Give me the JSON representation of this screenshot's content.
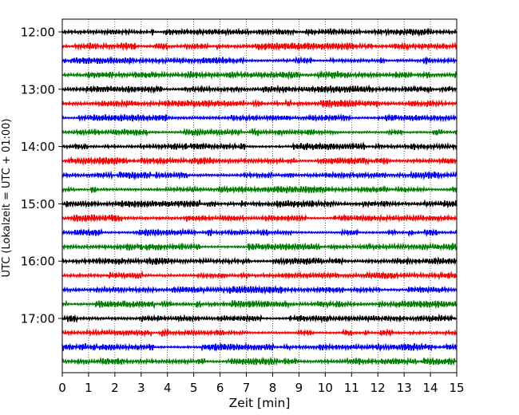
{
  "chart_data": {
    "type": "line",
    "title": "",
    "xlabel": "Zeit  [min]",
    "ylabel": "UTC (Lokalzeit = UTC + 01:00)",
    "xlim": [
      0,
      15
    ],
    "x_ticks": [
      "0",
      "1",
      "2",
      "3",
      "4",
      "5",
      "6",
      "7",
      "8",
      "9",
      "10",
      "11",
      "12",
      "13",
      "14",
      "15"
    ],
    "y_ticks": [
      "12:00",
      "13:00",
      "14:00",
      "15:00",
      "16:00",
      "17:00"
    ],
    "grid": "vertical dotted at each minute",
    "trace_interval_min": 15,
    "trace_start_hours": [
      "12:00",
      "12:15",
      "12:30",
      "12:45",
      "13:00",
      "13:15",
      "13:30",
      "13:45",
      "14:00",
      "14:15",
      "14:30",
      "14:45",
      "15:00",
      "15:15",
      "15:30",
      "15:45",
      "16:00",
      "16:15",
      "16:30",
      "16:45",
      "17:00",
      "17:15",
      "17:30",
      "17:45"
    ],
    "trace_color_cycle": [
      "#000000",
      "#ff0000",
      "#0000ff",
      "#007f00"
    ]
  }
}
